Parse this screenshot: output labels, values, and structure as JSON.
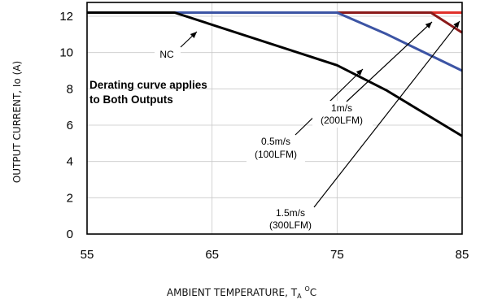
{
  "chart_data": {
    "type": "line",
    "xlabel": {
      "text": "AMBIENT TEMPERATURE, T",
      "sub": "A",
      "sup": "O",
      "unit": "C"
    },
    "ylabel": "OUTPUT CURRENT, Io  (A)",
    "xlim": [
      55,
      85
    ],
    "ylim": [
      0,
      13
    ],
    "x_ticks": [
      55,
      65,
      75,
      85
    ],
    "y_ticks": [
      0,
      2,
      4,
      6,
      8,
      10,
      12
    ],
    "grid": true,
    "series": [
      {
        "name": "NC",
        "color": "#000000",
        "x": [
          55,
          62,
          75,
          79,
          85
        ],
        "y": [
          12.2,
          12.2,
          9.3,
          7.9,
          5.4
        ]
      },
      {
        "name": "0.5m/s (100LFM)",
        "color": "#3c54a4",
        "x": [
          55,
          75,
          79,
          85
        ],
        "y": [
          12.2,
          12.2,
          11.0,
          9.0
        ]
      },
      {
        "name": "1m/s (200LFM)",
        "color": "#8b1a1a",
        "x": [
          55,
          82.5,
          85
        ],
        "y": [
          12.2,
          12.2,
          11.1
        ]
      },
      {
        "name": "1.5m/s (300LFM)",
        "color": "#e0302a",
        "x": [
          55,
          85
        ],
        "y": [
          12.2,
          12.2
        ]
      }
    ],
    "annotations": [
      {
        "id": "nc",
        "lines": [
          "NC"
        ]
      },
      {
        "id": "half",
        "lines": [
          "0.5m/s",
          "(100LFM)"
        ]
      },
      {
        "id": "one",
        "lines": [
          "1m/s",
          "(200LFM)"
        ]
      },
      {
        "id": "onehalf",
        "lines": [
          "1.5m/s",
          "(300LFM)"
        ]
      },
      {
        "id": "note",
        "lines": [
          "Derating curve applies",
          "to Both Outputs"
        ]
      }
    ]
  }
}
